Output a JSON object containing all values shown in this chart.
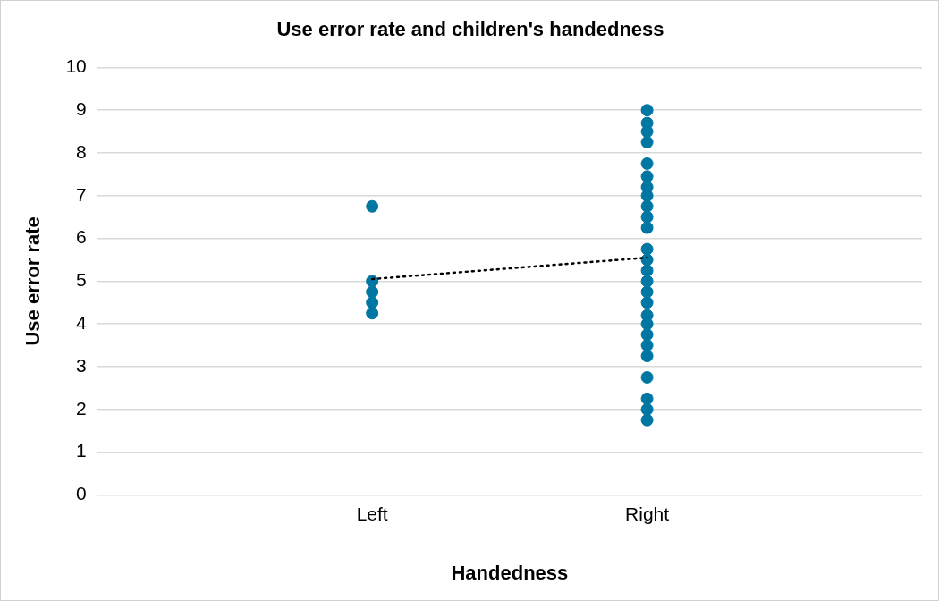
{
  "chart_data": {
    "type": "scatter",
    "title": "Use error rate and children's handedness",
    "xlabel": "Handedness",
    "ylabel": "Use error rate",
    "categories": [
      "Left",
      "Right"
    ],
    "series": [
      {
        "color": "#0077a3",
        "marker": "circle",
        "x": [
          "Left",
          "Left",
          "Left",
          "Left",
          "Left",
          "Right",
          "Right",
          "Right",
          "Right",
          "Right",
          "Right",
          "Right",
          "Right",
          "Right",
          "Right",
          "Right",
          "Right",
          "Right",
          "Right",
          "Right",
          "Right",
          "Right",
          "Right",
          "Right",
          "Right",
          "Right",
          "Right",
          "Right",
          "Right",
          "Right",
          "Right"
        ],
        "values": [
          6.75,
          5.0,
          4.75,
          4.5,
          4.25,
          9.0,
          8.7,
          8.5,
          8.25,
          7.75,
          7.45,
          7.2,
          7.0,
          6.75,
          6.5,
          6.25,
          5.75,
          5.5,
          5.25,
          5.0,
          4.75,
          4.5,
          4.2,
          4.0,
          3.75,
          3.5,
          3.25,
          2.75,
          2.25,
          2.0,
          1.75
        ]
      },
      {
        "type": "line",
        "color": "#000000",
        "marker": "none",
        "line_style": "dotted",
        "x": [
          "Left",
          "Right"
        ],
        "values": [
          5.05,
          5.55
        ]
      }
    ],
    "ylim": [
      0,
      10
    ],
    "yticks": [
      0,
      1,
      2,
      3,
      4,
      5,
      6,
      7,
      8,
      9,
      10
    ],
    "grid": "y",
    "legend": false
  }
}
